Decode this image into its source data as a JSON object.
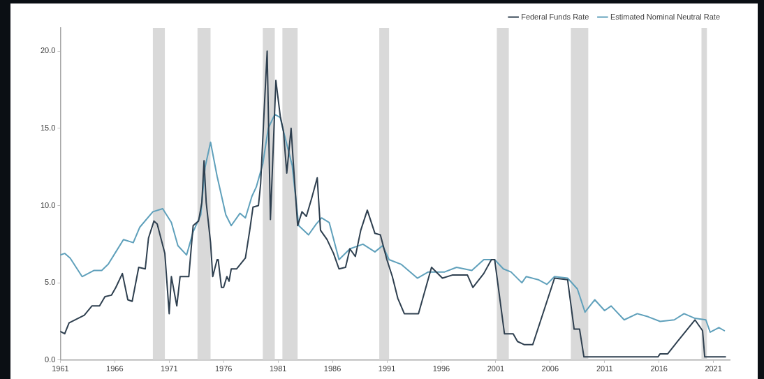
{
  "chart_data": {
    "type": "line",
    "xlim": [
      1961,
      2022.5
    ],
    "ylim": [
      0,
      21.5
    ],
    "xticks": [
      1961,
      1966,
      1971,
      1976,
      1981,
      1986,
      1991,
      1996,
      2001,
      2006,
      2011,
      2016,
      2021
    ],
    "yticks": [
      {
        "value": 0,
        "label": "0.0"
      },
      {
        "value": 5,
        "label": "5.0"
      },
      {
        "value": 10,
        "label": "10.0"
      },
      {
        "value": 15,
        "label": "15.0"
      },
      {
        "value": 20,
        "label": "20.0"
      }
    ],
    "grid": false,
    "legend": "top right",
    "marker": "none",
    "line_style": "solid",
    "bands": [
      {
        "axis": "x",
        "from": 1969.5,
        "to": 1970.6,
        "color": "#d9d9d9"
      },
      {
        "axis": "x",
        "from": 1973.6,
        "to": 1974.8,
        "color": "#d9d9d9"
      },
      {
        "axis": "x",
        "from": 1979.6,
        "to": 1980.7,
        "color": "#d9d9d9"
      },
      {
        "axis": "x",
        "from": 1981.4,
        "to": 1982.8,
        "color": "#d9d9d9"
      },
      {
        "axis": "x",
        "from": 1990.3,
        "to": 1991.2,
        "color": "#d9d9d9"
      },
      {
        "axis": "x",
        "from": 2001.1,
        "to": 2002.2,
        "color": "#d9d9d9"
      },
      {
        "axis": "x",
        "from": 2007.9,
        "to": 2009.5,
        "color": "#d9d9d9"
      },
      {
        "axis": "x",
        "from": 2019.9,
        "to": 2020.4,
        "color": "#d9d9d9"
      }
    ],
    "series": [
      {
        "name": "Federal Funds Rate",
        "color": "#2e3f4f",
        "x": [
          1961.0,
          1961.4,
          1961.8,
          1963.2,
          1963.9,
          1964.6,
          1965.1,
          1965.7,
          1966.1,
          1966.7,
          1967.2,
          1967.6,
          1968.2,
          1968.8,
          1969.1,
          1969.6,
          1969.9,
          1970.6,
          1971.0,
          1971.2,
          1971.7,
          1972.0,
          1972.8,
          1973.2,
          1973.7,
          1974.0,
          1974.2,
          1974.4,
          1974.8,
          1975.0,
          1975.4,
          1975.5,
          1975.8,
          1976.0,
          1976.3,
          1976.5,
          1976.7,
          1977.2,
          1978.0,
          1978.4,
          1978.7,
          1979.2,
          1979.4,
          1979.7,
          1980.0,
          1980.3,
          1980.8,
          1981.2,
          1981.5,
          1981.8,
          1982.2,
          1982.4,
          1982.8,
          1983.2,
          1983.6,
          1984.1,
          1984.6,
          1984.9,
          1985.5,
          1986.1,
          1986.6,
          1987.2,
          1987.6,
          1988.1,
          1988.6,
          1989.2,
          1989.9,
          1990.4,
          1991.0,
          1991.5,
          1992.0,
          1992.6,
          1993.9,
          1995.1,
          1996.1,
          1997.0,
          1998.4,
          1998.9,
          1999.9,
          2000.6,
          2000.9,
          2001.8,
          2002.6,
          2003.0,
          2003.6,
          2004.4,
          2006.4,
          2007.6,
          2008.2,
          2008.7,
          2009.1,
          2015.9,
          2016.1,
          2016.8,
          2017.7,
          2019.3,
          2020.0,
          2020.2,
          2022.1
        ],
        "values": [
          1.85,
          1.7,
          2.4,
          2.9,
          3.5,
          3.5,
          4.1,
          4.2,
          4.7,
          5.6,
          3.9,
          3.8,
          6.0,
          5.9,
          7.9,
          9.0,
          8.8,
          6.9,
          3.0,
          5.4,
          3.5,
          5.4,
          5.4,
          8.7,
          9.0,
          10.2,
          12.9,
          10.2,
          7.6,
          5.4,
          6.5,
          6.5,
          4.7,
          4.7,
          5.4,
          5.1,
          5.9,
          5.9,
          6.6,
          8.4,
          9.9,
          10.0,
          11.4,
          15.8,
          20.0,
          9.1,
          18.1,
          15.8,
          14.8,
          12.1,
          15.0,
          12.8,
          8.7,
          9.6,
          9.3,
          10.5,
          11.8,
          8.4,
          7.8,
          6.9,
          5.9,
          6.0,
          7.2,
          6.7,
          8.4,
          9.7,
          8.2,
          8.1,
          6.5,
          5.4,
          4.0,
          3.0,
          3.0,
          6.0,
          5.3,
          5.5,
          5.5,
          4.7,
          5.6,
          6.5,
          6.5,
          1.7,
          1.7,
          1.2,
          1.0,
          1.0,
          5.3,
          5.2,
          2.0,
          2.0,
          0.2,
          0.2,
          0.4,
          0.4,
          1.2,
          2.6,
          1.9,
          0.2,
          0.2
        ]
      },
      {
        "name": "Estimated Nominal Neutral Rate",
        "color": "#5fa0bb",
        "x": [
          1961.0,
          1961.4,
          1961.9,
          1963.0,
          1964.1,
          1964.8,
          1965.4,
          1966.1,
          1966.8,
          1967.7,
          1968.3,
          1969.5,
          1970.4,
          1971.2,
          1971.8,
          1972.6,
          1973.2,
          1973.9,
          1974.3,
          1974.8,
          1975.4,
          1976.2,
          1976.7,
          1977.5,
          1978.0,
          1978.6,
          1979.0,
          1979.6,
          1980.1,
          1980.7,
          1981.2,
          1981.5,
          1982.3,
          1982.9,
          1983.8,
          1984.5,
          1985.0,
          1985.7,
          1986.6,
          1987.6,
          1988.8,
          1989.9,
          1990.6,
          1991.2,
          1992.3,
          1993.8,
          1994.8,
          1996.3,
          1997.4,
          1998.8,
          1999.9,
          2000.9,
          2001.7,
          2002.4,
          2003.4,
          2003.8,
          2004.9,
          2005.7,
          2006.4,
          2007.6,
          2008.5,
          2009.2,
          2010.1,
          2011.0,
          2011.6,
          2012.8,
          2014.0,
          2015.0,
          2016.1,
          2017.4,
          2018.3,
          2019.3,
          2020.3,
          2020.7,
          2021.5,
          2022.0
        ],
        "values": [
          6.8,
          6.9,
          6.6,
          5.4,
          5.8,
          5.8,
          6.2,
          7.0,
          7.8,
          7.6,
          8.6,
          9.6,
          9.8,
          8.9,
          7.4,
          6.8,
          8.3,
          9.4,
          12.5,
          14.1,
          11.9,
          9.4,
          8.7,
          9.5,
          9.2,
          10.6,
          11.2,
          12.7,
          15.0,
          15.9,
          15.7,
          14.8,
          12.6,
          8.7,
          8.1,
          8.8,
          9.2,
          8.9,
          6.5,
          7.2,
          7.5,
          7.0,
          7.4,
          6.5,
          6.2,
          5.3,
          5.7,
          5.7,
          6.0,
          5.8,
          6.5,
          6.5,
          5.9,
          5.7,
          5.0,
          5.4,
          5.2,
          4.9,
          5.4,
          5.3,
          4.6,
          3.1,
          3.9,
          3.2,
          3.5,
          2.6,
          3.0,
          2.8,
          2.5,
          2.6,
          3.0,
          2.7,
          2.6,
          1.8,
          2.1,
          1.9
        ]
      }
    ]
  }
}
